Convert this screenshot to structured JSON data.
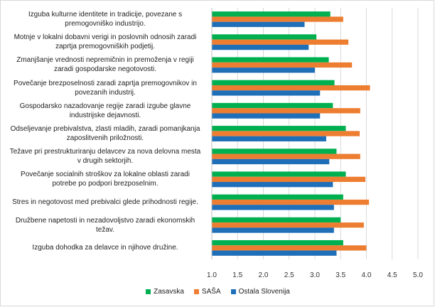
{
  "chart_data": {
    "type": "bar",
    "orientation": "horizontal",
    "categories": [
      "Izguba kulturne identitete in tradicije, povezane s premogovniško industrijo.",
      "Motnje v lokalni dobavni verigi in poslovnih odnosih zaradi zaprtja premogovniških podjetij.",
      "Zmanjšanje vrednosti nepremičnin in premoženja v regiji zaradi gospodarske negotovosti.",
      "Povečanje brezposelnosti zaradi zaprtja premogovnikov in povezanih industrij.",
      "Gospodarsko nazadovanje regije zaradi izgube glavne industrijske dejavnosti.",
      "Odseljevanje prebivalstva, zlasti mladih, zaradi pomanjkanja zaposlitvenih priložnosti.",
      "Težave pri prestrukturiranju delavcev za nova delovna mesta v drugih sektorjih.",
      "Povečanje socialnih stroškov za lokalne oblasti zaradi potrebe po podpori brezposelnim.",
      "Stres in negotovost med prebivalci glede prihodnosti regije.",
      "Družbene napetosti in nezadovoljstvo zaradi ekonomskih težav.",
      "Izguba dohodka za delavce in njihove družine."
    ],
    "display_labels": [
      [
        "Izguba kulturne identitete in tradicije, povezane s",
        "premogovniško industrijo."
      ],
      [
        "Motnje v lokalni dobavni verigi in poslovnih odnosih zaradi",
        "zaprtja premogovniških podjetij."
      ],
      [
        "Zmanjšanje vrednosti nepremičnin in premoženja v regiji",
        "zaradi gospodarske negotovosti."
      ],
      [
        "Povečanje brezposelnosti zaradi zaprtja premogovnikov in",
        "povezanih industrij."
      ],
      [
        "Gospodarsko nazadovanje regije zaradi izgube glavne",
        "industrijske dejavnosti."
      ],
      [
        "Odseljevanje prebivalstva, zlasti mladih, zaradi pomanjkanja",
        "zaposlitvenih priložnosti."
      ],
      [
        "Težave pri prestrukturiranju delavcev za nova delovna mesta",
        "v drugih sektorjih."
      ],
      [
        "Povečanje socialnih stroškov za lokalne oblasti zaradi",
        "potrebe po podpori brezposelnim."
      ],
      [
        "Stres in negotovost med prebivalci glede prihodnosti regije."
      ],
      [
        "Družbene napetosti in nezadovoljstvo zaradi ekonomskih",
        "težav."
      ],
      [
        "Izguba dohodka za delavce in njihove družine."
      ]
    ],
    "series": [
      {
        "name": "Zasavska",
        "color": "#00b050",
        "values": [
          3.3,
          3.03,
          3.27,
          3.38,
          3.35,
          3.6,
          3.42,
          3.6,
          3.55,
          3.5,
          3.55
        ]
      },
      {
        "name": "SAŠA",
        "color": "#ed7d31",
        "values": [
          3.55,
          3.65,
          3.72,
          4.07,
          3.88,
          3.87,
          3.88,
          3.98,
          4.05,
          3.95,
          4.0
        ]
      },
      {
        "name": "Ostala Slovenija",
        "color": "#1f6fb8",
        "values": [
          2.8,
          2.88,
          3.0,
          3.1,
          3.1,
          3.22,
          3.28,
          3.35,
          3.37,
          3.37,
          3.42
        ]
      }
    ],
    "xlim": [
      1.0,
      5.0
    ],
    "xticks": [
      "1.0",
      "1.5",
      "2.0",
      "2.5",
      "3.0",
      "3.5",
      "4.0",
      "4.5",
      "5.0"
    ],
    "grid": true,
    "legend": "bottom"
  }
}
